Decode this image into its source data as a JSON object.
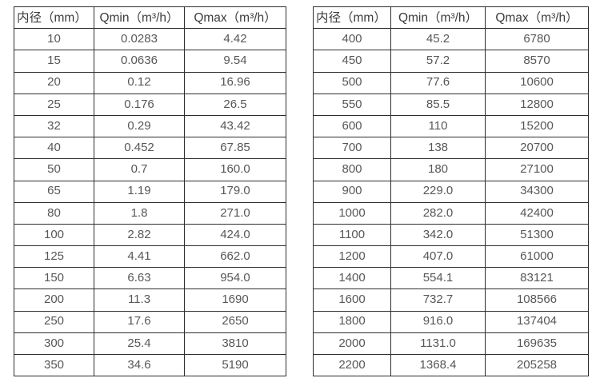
{
  "page": {
    "background": "#ffffff",
    "description": "Two side-by-side flow range tables (inner diameter vs min/max flow)"
  },
  "colors": {
    "border": "#2e2e2e",
    "header_text": "#3d3d3d",
    "cell_text": "#575757",
    "background": "#ffffff"
  },
  "tables": [
    {
      "headers": [
        "内径（mm）",
        "Qmin（m³/h）",
        "Qmax（m³/h）"
      ],
      "rows": [
        [
          "10",
          "0.0283",
          "4.42"
        ],
        [
          "15",
          "0.0636",
          "9.54"
        ],
        [
          "20",
          "0.12",
          "16.96"
        ],
        [
          "25",
          "0.176",
          "26.5"
        ],
        [
          "32",
          "0.29",
          "43.42"
        ],
        [
          "40",
          "0.452",
          "67.85"
        ],
        [
          "50",
          "0.7",
          "160.0"
        ],
        [
          "65",
          "1.19",
          "179.0"
        ],
        [
          "80",
          "1.8",
          "271.0"
        ],
        [
          "100",
          "2.82",
          "424.0"
        ],
        [
          "125",
          "4.41",
          "662.0"
        ],
        [
          "150",
          "6.63",
          "954.0"
        ],
        [
          "200",
          "11.3",
          "1690"
        ],
        [
          "250",
          "17.6",
          "2650"
        ],
        [
          "300",
          "25.4",
          "3810"
        ],
        [
          "350",
          "34.6",
          "5190"
        ]
      ]
    },
    {
      "headers": [
        "内径（mm）",
        "Qmin（m³/h）",
        "Qmax（m³/h）"
      ],
      "rows": [
        [
          "400",
          "45.2",
          "6780"
        ],
        [
          "450",
          "57.2",
          "8570"
        ],
        [
          "500",
          "77.6",
          "10600"
        ],
        [
          "550",
          "85.5",
          "12800"
        ],
        [
          "600",
          "110",
          "15200"
        ],
        [
          "700",
          "138",
          "20700"
        ],
        [
          "800",
          "180",
          "27100"
        ],
        [
          "900",
          "229.0",
          "34300"
        ],
        [
          "1000",
          "282.0",
          "42400"
        ],
        [
          "1100",
          "342.0",
          "51300"
        ],
        [
          "1200",
          "407.0",
          "61000"
        ],
        [
          "1400",
          "554.1",
          "83121"
        ],
        [
          "1600",
          "732.7",
          "108566"
        ],
        [
          "1800",
          "916.0",
          "137404"
        ],
        [
          "2000",
          "1131.0",
          "169635"
        ],
        [
          "2200",
          "1368.4",
          "205258"
        ]
      ]
    }
  ]
}
